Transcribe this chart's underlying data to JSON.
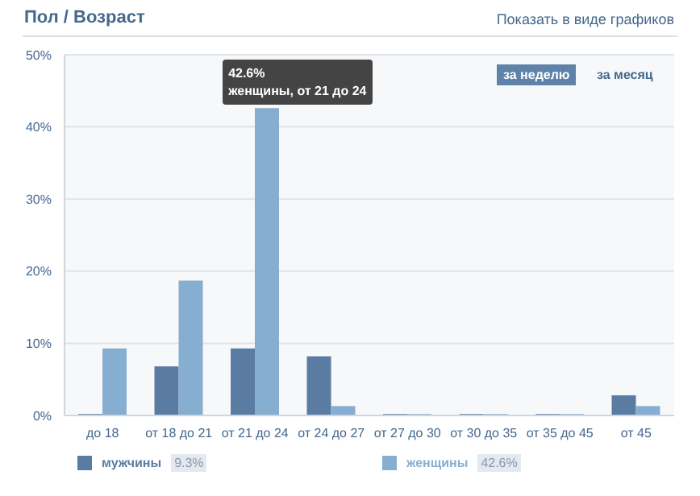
{
  "chart_data": {
    "type": "bar",
    "title": "Пол / Возраст",
    "categories": [
      "до 18",
      "от 18 до 21",
      "от 21 до 24",
      "от 24 до 27",
      "от 27 до 30",
      "от 30 до 35",
      "от 35 до 45",
      "от 45"
    ],
    "series": [
      {
        "name": "мужчины",
        "color": "#5a7ca3",
        "values": [
          0.2,
          6.8,
          9.3,
          8.2,
          0.2,
          0.2,
          0.2,
          2.8
        ]
      },
      {
        "name": "женщины",
        "color": "#86aed0",
        "values": [
          9.3,
          18.7,
          42.6,
          1.3,
          0.2,
          0.2,
          0.2,
          1.3
        ]
      }
    ],
    "ylim": [
      0,
      50
    ],
    "yticks": [
      {
        "value": 0,
        "label": "0%"
      },
      {
        "value": 10,
        "label": "10%"
      },
      {
        "value": 20,
        "label": "20%"
      },
      {
        "value": 30,
        "label": "30%"
      },
      {
        "value": 40,
        "label": "40%"
      },
      {
        "value": 50,
        "label": "50%"
      }
    ],
    "grid": "y",
    "legend": "bottom",
    "annotations": [
      "Показать в виде графиков",
      "за неделю",
      "за месяц",
      {
        "text": "42.6%\nженщины, от 21 до 24",
        "x": "от 21 до 24",
        "y": 42.6
      },
      "9.3%",
      "42.6%"
    ]
  }
}
